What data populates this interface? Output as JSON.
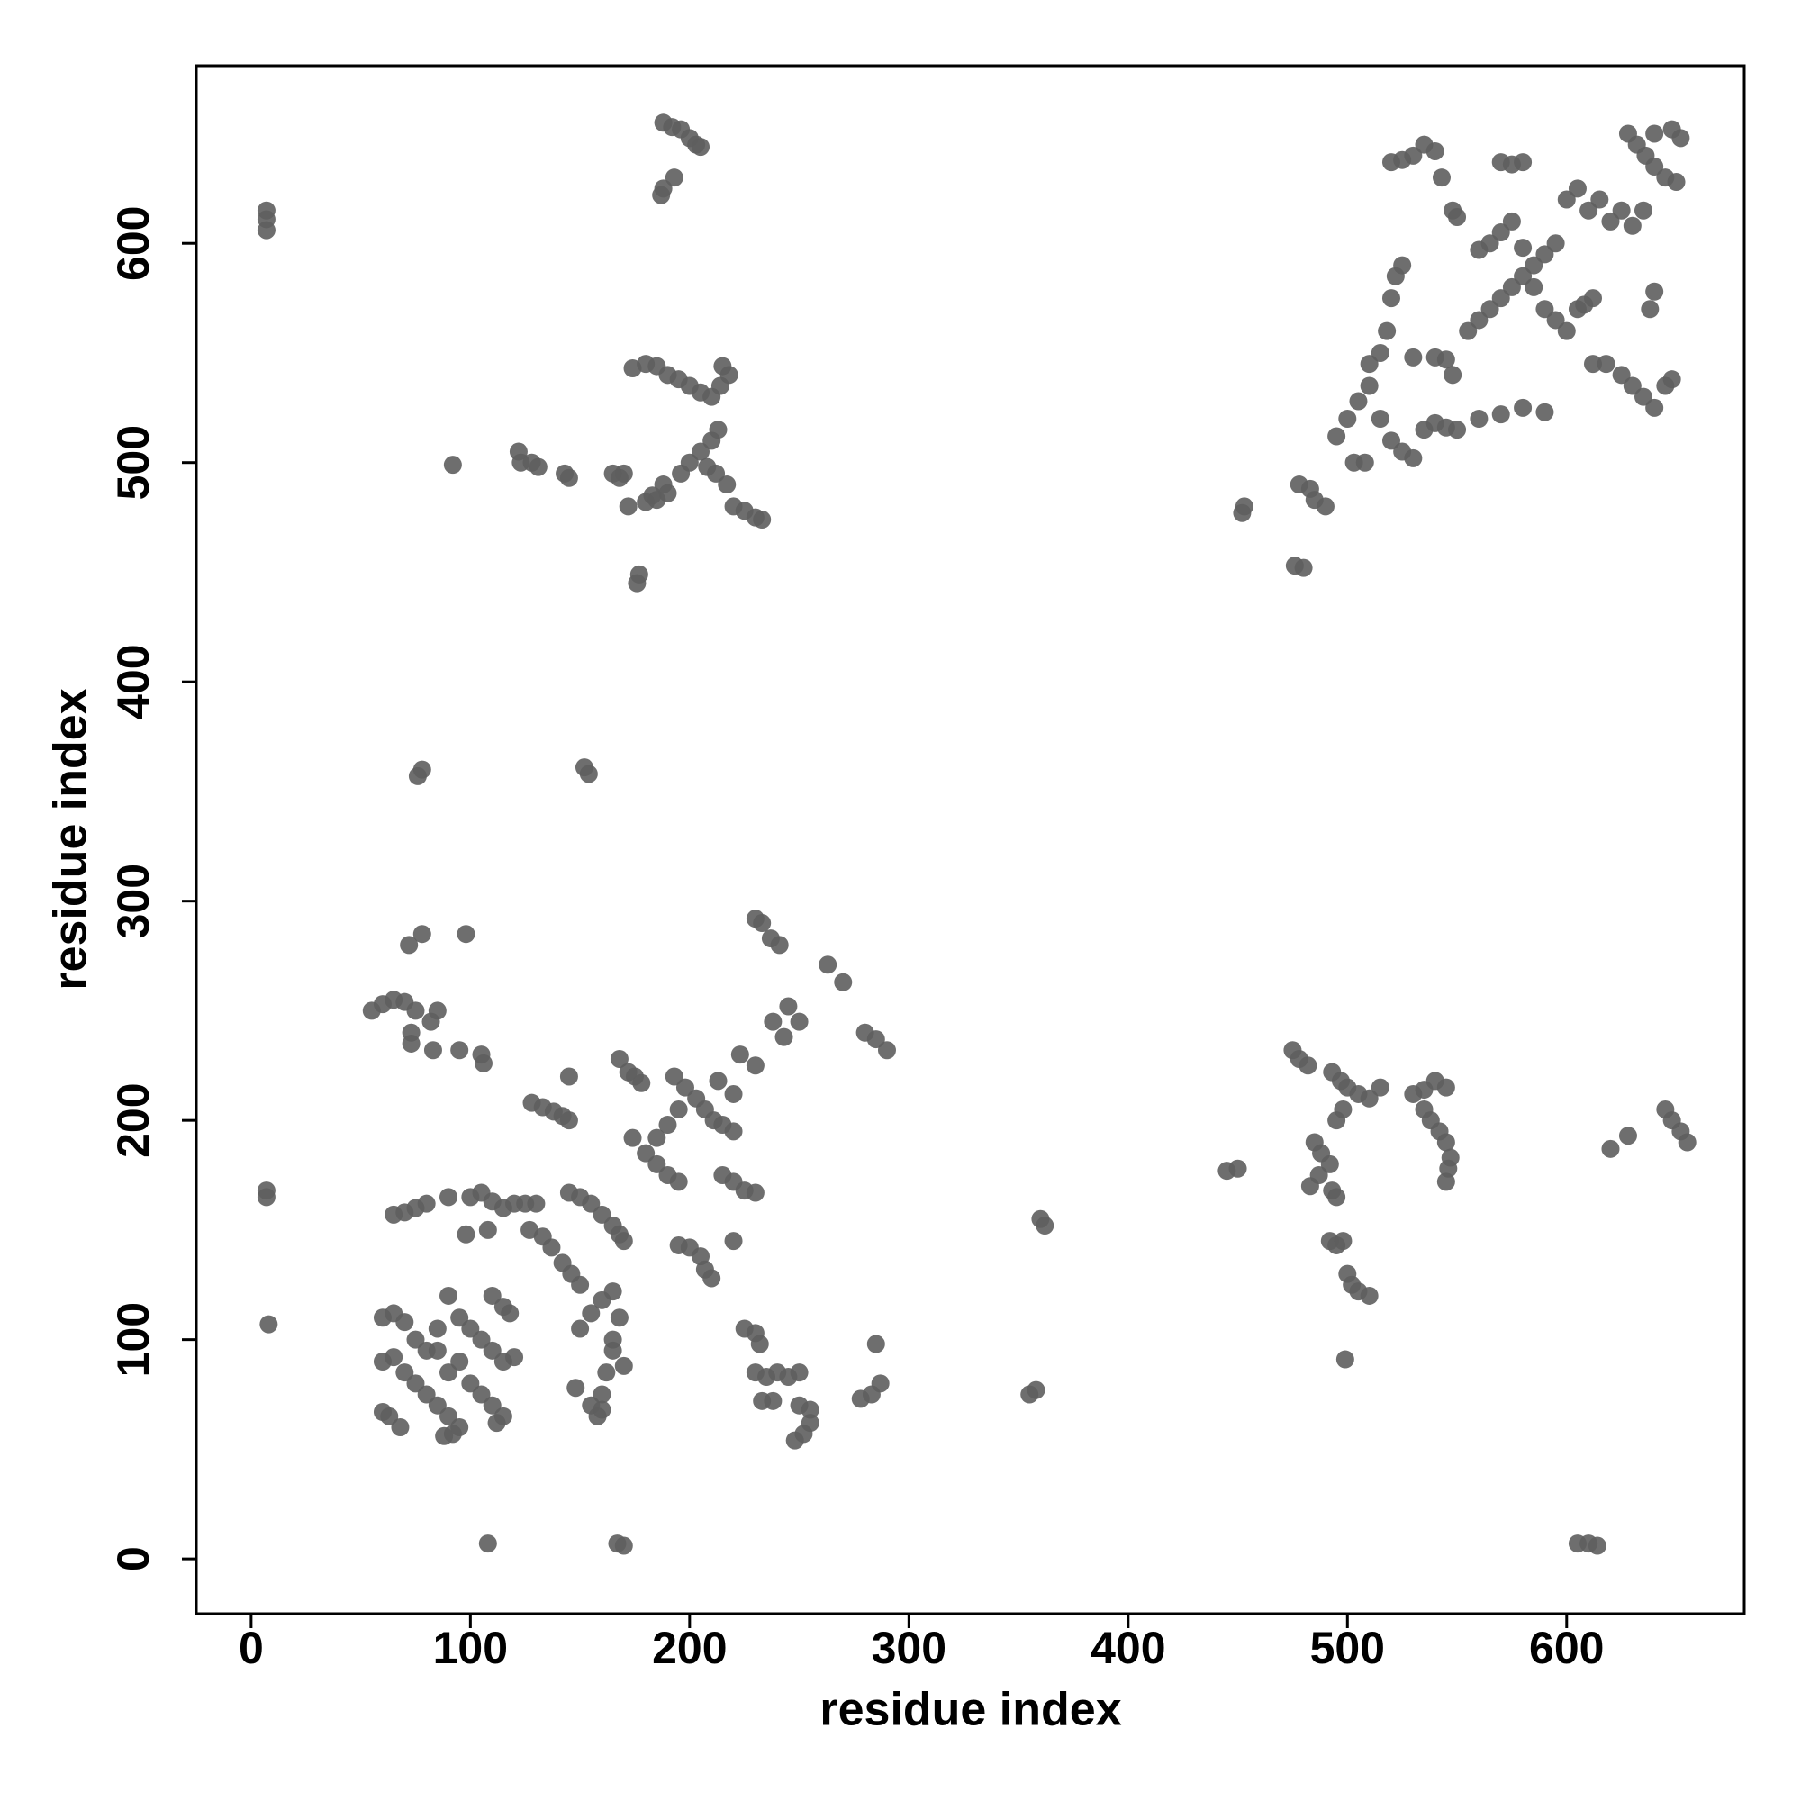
{
  "chart_data": {
    "type": "scatter",
    "xlabel": "residue index",
    "ylabel": "residue index",
    "color": "#5e5e5e",
    "xlim": [
      -25,
      681
    ],
    "ylim": [
      -25,
      681
    ],
    "xticks": [
      0,
      100,
      200,
      300,
      400,
      500,
      600
    ],
    "yticks": [
      0,
      100,
      200,
      300,
      400,
      500,
      600
    ],
    "x": [
      7,
      7,
      7,
      188,
      192,
      196,
      200,
      203,
      205,
      188,
      187,
      193,
      174,
      180,
      185,
      190,
      195,
      200,
      205,
      210,
      214,
      218,
      215,
      196,
      200,
      205,
      210,
      213,
      208,
      212,
      217,
      220,
      225,
      230,
      233,
      172,
      180,
      185,
      190,
      188,
      183,
      165,
      170,
      168,
      176,
      177,
      92,
      122,
      123,
      128,
      131,
      143,
      145,
      76,
      78,
      152,
      154,
      72,
      78,
      98,
      55,
      60,
      65,
      70,
      75,
      73,
      73,
      85,
      82,
      83,
      95,
      105,
      106,
      7,
      7,
      8,
      65,
      70,
      75,
      80,
      90,
      100,
      105,
      110,
      115,
      120,
      125,
      130,
      98,
      108,
      60,
      65,
      70,
      75,
      80,
      85,
      90,
      95,
      100,
      105,
      110,
      115,
      120,
      110,
      115,
      118,
      60,
      65,
      70,
      75,
      80,
      85,
      90,
      95,
      92,
      88,
      63,
      60,
      68,
      100,
      105,
      110,
      115,
      112,
      95,
      90,
      85,
      128,
      133,
      138,
      142,
      145,
      145,
      127,
      133,
      137,
      142,
      146,
      150,
      145,
      150,
      155,
      160,
      165,
      168,
      170,
      150,
      155,
      160,
      165,
      168,
      165,
      165,
      170,
      160,
      155,
      158,
      160,
      148,
      162,
      168,
      172,
      175,
      178,
      174,
      180,
      185,
      190,
      195,
      185,
      190,
      195,
      193,
      198,
      203,
      207,
      211,
      215,
      220,
      213,
      220,
      223,
      230,
      215,
      220,
      225,
      230,
      195,
      200,
      205,
      207,
      210,
      220,
      230,
      233,
      237,
      241,
      263,
      270,
      238,
      245,
      250,
      243,
      280,
      285,
      290,
      225,
      230,
      232,
      230,
      235,
      240,
      245,
      250,
      233,
      238,
      250,
      255,
      255,
      252,
      248,
      283,
      287,
      285,
      278,
      108,
      167,
      170,
      355,
      358,
      360,
      362,
      445,
      450,
      475,
      478,
      482,
      485,
      488,
      492,
      487,
      483,
      493,
      497,
      500,
      505,
      510,
      515,
      495,
      498,
      493,
      495,
      492,
      495,
      498,
      500,
      502,
      505,
      510,
      499,
      530,
      535,
      540,
      545,
      535,
      538,
      542,
      545,
      547,
      546,
      545,
      645,
      648,
      652,
      655,
      620,
      628,
      605,
      610,
      614,
      452,
      453,
      476,
      480,
      478,
      483,
      485,
      490,
      495,
      500,
      505,
      510,
      503,
      508,
      515,
      520,
      525,
      530,
      535,
      540,
      545,
      550,
      560,
      570,
      580,
      590,
      510,
      515,
      518,
      520,
      522,
      525,
      520,
      525,
      530,
      535,
      540,
      543,
      548,
      550,
      540,
      545,
      548,
      530,
      555,
      560,
      565,
      570,
      575,
      580,
      585,
      590,
      595,
      560,
      565,
      570,
      575,
      580,
      585,
      590,
      595,
      600,
      605,
      608,
      612,
      570,
      575,
      580,
      600,
      605,
      610,
      615,
      620,
      625,
      630,
      635,
      628,
      632,
      636,
      640,
      645,
      650,
      648,
      652,
      640,
      612,
      618,
      625,
      630,
      635,
      640,
      645,
      648,
      638,
      640
    ],
    "y": [
      615,
      611,
      606,
      655,
      653,
      652,
      648,
      645,
      644,
      625,
      622,
      630,
      543,
      545,
      544,
      540,
      538,
      535,
      532,
      530,
      535,
      540,
      544,
      495,
      500,
      505,
      510,
      515,
      498,
      495,
      490,
      480,
      478,
      475,
      474,
      480,
      482,
      483,
      486,
      490,
      485,
      495,
      495,
      493,
      445,
      449,
      499,
      505,
      500,
      500,
      498,
      495,
      493,
      357,
      360,
      361,
      358,
      280,
      285,
      285,
      250,
      253,
      255,
      254,
      250,
      240,
      235,
      250,
      245,
      232,
      232,
      230,
      226,
      168,
      165,
      107,
      157,
      158,
      160,
      162,
      165,
      165,
      167,
      163,
      160,
      162,
      162,
      162,
      148,
      150,
      110,
      112,
      108,
      100,
      95,
      105,
      120,
      110,
      105,
      100,
      95,
      90,
      92,
      120,
      115,
      112,
      90,
      92,
      85,
      80,
      75,
      70,
      65,
      60,
      57,
      56,
      65,
      67,
      60,
      80,
      75,
      70,
      65,
      62,
      90,
      85,
      95,
      208,
      206,
      204,
      202,
      200,
      220,
      150,
      147,
      142,
      135,
      130,
      125,
      167,
      165,
      162,
      157,
      152,
      148,
      145,
      105,
      112,
      118,
      122,
      110,
      100,
      95,
      88,
      75,
      70,
      65,
      68,
      78,
      85,
      228,
      222,
      220,
      217,
      192,
      185,
      180,
      175,
      172,
      192,
      198,
      205,
      220,
      215,
      210,
      205,
      200,
      198,
      195,
      218,
      212,
      230,
      225,
      175,
      172,
      168,
      167,
      143,
      142,
      138,
      132,
      128,
      145,
      292,
      290,
      283,
      280,
      271,
      263,
      245,
      252,
      245,
      238,
      240,
      237,
      232,
      105,
      103,
      98,
      85,
      83,
      85,
      83,
      85,
      72,
      72,
      70,
      68,
      62,
      57,
      54,
      75,
      80,
      98,
      73,
      7,
      7,
      6,
      75,
      77,
      155,
      152,
      177,
      178,
      232,
      228,
      225,
      190,
      185,
      180,
      175,
      170,
      222,
      218,
      215,
      212,
      210,
      215,
      200,
      205,
      168,
      165,
      145,
      143,
      145,
      130,
      125,
      122,
      120,
      91,
      212,
      214,
      218,
      215,
      205,
      200,
      195,
      190,
      183,
      178,
      172,
      205,
      200,
      195,
      190,
      187,
      193,
      7,
      7,
      6,
      477,
      480,
      453,
      452,
      490,
      488,
      483,
      480,
      512,
      520,
      528,
      535,
      500,
      500,
      520,
      510,
      505,
      502,
      515,
      518,
      516,
      515,
      520,
      522,
      525,
      523,
      545,
      550,
      560,
      575,
      585,
      590,
      637,
      638,
      640,
      645,
      642,
      630,
      615,
      612,
      548,
      547,
      540,
      548,
      560,
      565,
      570,
      575,
      580,
      585,
      590,
      595,
      600,
      597,
      600,
      605,
      610,
      598,
      580,
      570,
      565,
      560,
      570,
      572,
      575,
      637,
      636,
      637,
      620,
      625,
      615,
      620,
      610,
      615,
      608,
      615,
      650,
      645,
      640,
      635,
      630,
      628,
      652,
      648,
      650,
      545,
      545,
      540,
      535,
      530,
      525,
      535,
      538,
      570,
      578
    ]
  }
}
